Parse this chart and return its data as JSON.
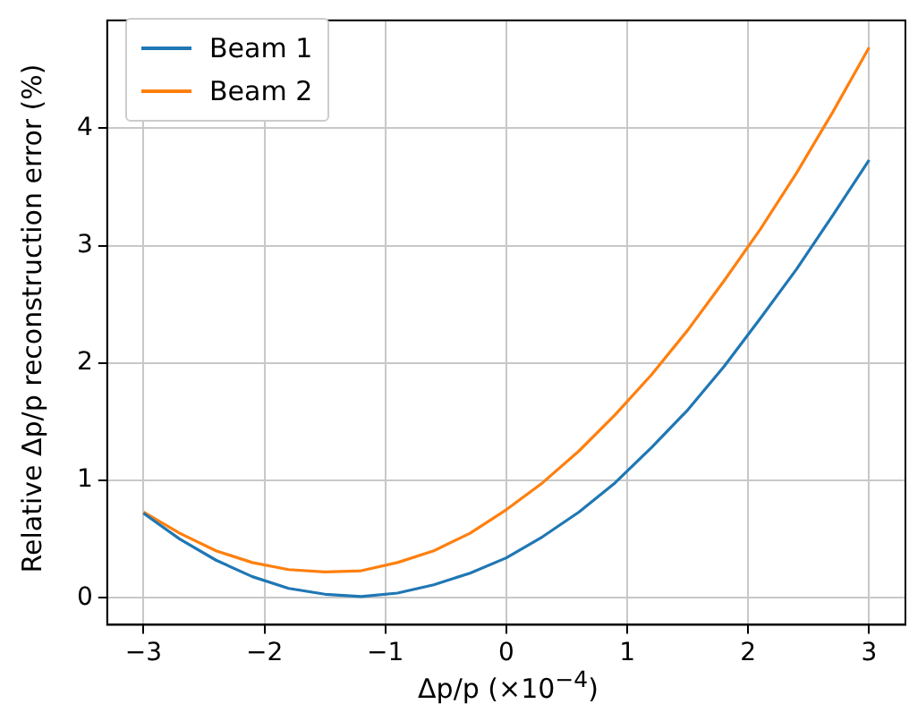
{
  "chart_data": {
    "type": "line",
    "xlabel": "Δp/p (×10$^{−4}$)",
    "ylabel": "Relative Δp/p reconstruction error (%)",
    "x": [
      -3,
      -2.7,
      -2.4,
      -2.1,
      -1.8,
      -1.5,
      -1.2,
      -0.9,
      -0.6,
      -0.3,
      0,
      0.3,
      0.6,
      0.9,
      1.2,
      1.5,
      1.8,
      2.1,
      2.4,
      2.7,
      3
    ],
    "series": [
      {
        "name": "Beam 1",
        "color": "#1f77b4",
        "values": [
          0.72,
          0.5,
          0.32,
          0.18,
          0.08,
          0.03,
          0.01,
          0.04,
          0.11,
          0.21,
          0.34,
          0.52,
          0.73,
          0.98,
          1.28,
          1.6,
          1.97,
          2.38,
          2.8,
          3.26,
          3.73
        ]
      },
      {
        "name": "Beam 2",
        "color": "#ff7f0e",
        "values": [
          0.73,
          0.55,
          0.4,
          0.3,
          0.24,
          0.22,
          0.23,
          0.3,
          0.4,
          0.55,
          0.75,
          0.98,
          1.25,
          1.56,
          1.9,
          2.28,
          2.7,
          3.14,
          3.62,
          4.14,
          4.69
        ]
      }
    ],
    "xlim": [
      -3.3,
      3.3
    ],
    "ylim": [
      -0.23,
      4.92
    ],
    "xticks": [
      -3,
      -2,
      -1,
      0,
      1,
      2,
      3
    ],
    "yticks": [
      0,
      1,
      2,
      3,
      4
    ],
    "grid": true,
    "legend": "top left",
    "marker": "none",
    "line_style": "solid"
  }
}
